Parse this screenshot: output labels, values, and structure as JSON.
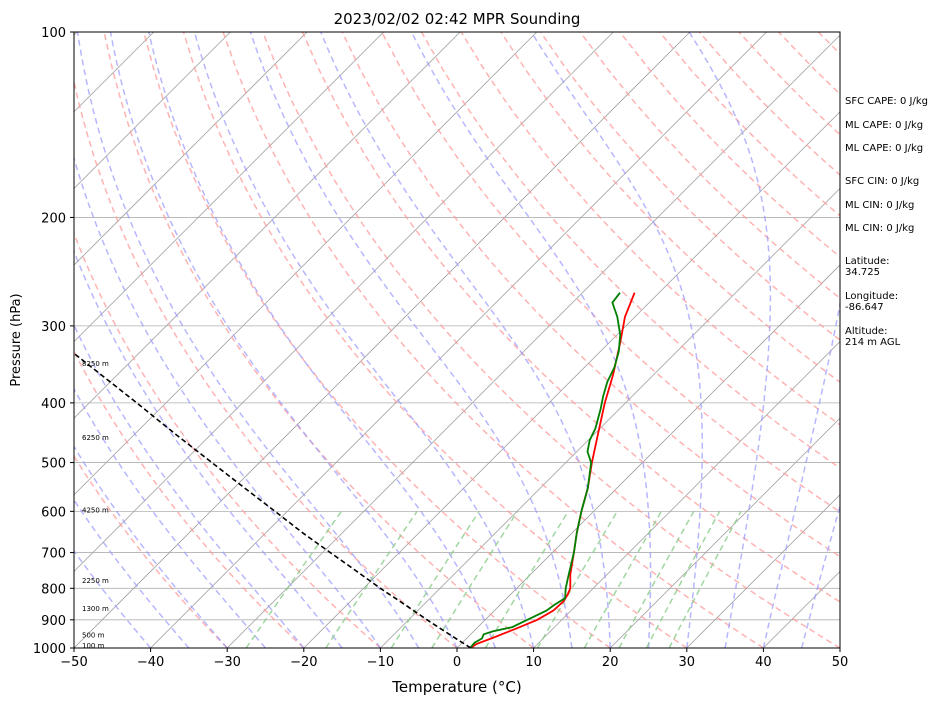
{
  "chart_data": {
    "type": "skew-t",
    "title": "2023/02/02 02:42 MPR Sounding",
    "xlabel": "Temperature (°C)",
    "ylabel": "Pressure (hPa)",
    "xlim": [
      -50,
      50
    ],
    "ylim": [
      1000,
      100
    ],
    "y_scale": "log",
    "grid": true,
    "x_ticks": [
      -50,
      -40,
      -30,
      -20,
      -10,
      0,
      10,
      20,
      30,
      40,
      50
    ],
    "x_tick_labels": [
      "−50",
      "−40",
      "−30",
      "−20",
      "−10",
      "0",
      "10",
      "20",
      "30",
      "40",
      "50"
    ],
    "y_ticks": [
      1000,
      900,
      800,
      700,
      600,
      500,
      400,
      300,
      200,
      100
    ],
    "y_tick_labels": [
      "1000",
      "900",
      "800",
      "700",
      "600",
      "500",
      "400",
      "300",
      "200",
      "100"
    ],
    "height_labels": [
      {
        "pressure": 992,
        "text": "100 m"
      },
      {
        "pressure": 955,
        "text": "500 m"
      },
      {
        "pressure": 865,
        "text": "1300 m"
      },
      {
        "pressure": 778,
        "text": "2250 m"
      },
      {
        "pressure": 598,
        "text": "4250 m"
      },
      {
        "pressure": 456,
        "text": "6250 m"
      },
      {
        "pressure": 346,
        "text": "8250 m"
      }
    ],
    "series": [
      {
        "role": "temperature",
        "color": "#ff0000",
        "points": [
          {
            "p": 1000,
            "t": 1.8
          },
          {
            "p": 985,
            "t": 2.0
          },
          {
            "p": 960,
            "t": 3.5
          },
          {
            "p": 930,
            "t": 5.2
          },
          {
            "p": 900,
            "t": 6.8
          },
          {
            "p": 870,
            "t": 7.7
          },
          {
            "p": 840,
            "t": 7.8
          },
          {
            "p": 820,
            "t": 7.5
          },
          {
            "p": 800,
            "t": 7.0
          },
          {
            "p": 760,
            "t": 5.2
          },
          {
            "p": 700,
            "t": 2.8
          },
          {
            "p": 650,
            "t": 0.6
          },
          {
            "p": 600,
            "t": -1.6
          },
          {
            "p": 550,
            "t": -3.8
          },
          {
            "p": 500,
            "t": -6.6
          },
          {
            "p": 450,
            "t": -9.5
          },
          {
            "p": 400,
            "t": -12.7
          },
          {
            "p": 360,
            "t": -15.3
          },
          {
            "p": 320,
            "t": -18.5
          },
          {
            "p": 290,
            "t": -21.3
          },
          {
            "p": 265,
            "t": -23.2
          }
        ]
      },
      {
        "role": "dewpoint",
        "color": "#008000",
        "points": [
          {
            "p": 1000,
            "t": 1.7
          },
          {
            "p": 980,
            "t": 1.6
          },
          {
            "p": 965,
            "t": 2.0
          },
          {
            "p": 950,
            "t": 1.7
          },
          {
            "p": 940,
            "t": 2.5
          },
          {
            "p": 925,
            "t": 4.5
          },
          {
            "p": 900,
            "t": 5.5
          },
          {
            "p": 870,
            "t": 6.8
          },
          {
            "p": 850,
            "t": 7.1
          },
          {
            "p": 830,
            "t": 7.6
          },
          {
            "p": 800,
            "t": 6.4
          },
          {
            "p": 760,
            "t": 5.0
          },
          {
            "p": 700,
            "t": 2.8
          },
          {
            "p": 650,
            "t": 0.6
          },
          {
            "p": 600,
            "t": -1.6
          },
          {
            "p": 550,
            "t": -3.8
          },
          {
            "p": 500,
            "t": -6.7
          },
          {
            "p": 480,
            "t": -8.6
          },
          {
            "p": 460,
            "t": -9.8
          },
          {
            "p": 440,
            "t": -10.6
          },
          {
            "p": 410,
            "t": -12.4
          },
          {
            "p": 390,
            "t": -13.8
          },
          {
            "p": 370,
            "t": -15.1
          },
          {
            "p": 350,
            "t": -16.1
          },
          {
            "p": 330,
            "t": -17.6
          },
          {
            "p": 310,
            "t": -19.6
          },
          {
            "p": 290,
            "t": -22.3
          },
          {
            "p": 275,
            "t": -24.8
          },
          {
            "p": 265,
            "t": -25.1
          }
        ]
      },
      {
        "role": "parcel",
        "color": "#000000",
        "dashed": true,
        "points": [
          {
            "p": 1000,
            "t": 1.8
          },
          {
            "p": 950,
            "t": -2.8
          },
          {
            "p": 900,
            "t": -7.6
          },
          {
            "p": 850,
            "t": -12.5
          },
          {
            "p": 800,
            "t": -17.8
          },
          {
            "p": 750,
            "t": -23.2
          },
          {
            "p": 700,
            "t": -29.0
          },
          {
            "p": 650,
            "t": -35.2
          },
          {
            "p": 600,
            "t": -41.6
          },
          {
            "p": 550,
            "t": -48.6
          },
          {
            "p": 500,
            "t": -56.2
          },
          {
            "p": 450,
            "t": -64.6
          },
          {
            "p": 400,
            "t": -73.8
          },
          {
            "p": 350,
            "t": -84.4
          },
          {
            "p": 300,
            "t": -96.6
          },
          {
            "p": 270,
            "t": -105.0
          }
        ]
      }
    ],
    "reference_lines": {
      "isotherm_color": "#a0a0a0",
      "dry_adiabat_color": "#ff9999",
      "moist_adiabat_color": "#9999ff",
      "mixing_ratio_color": "#88cc88"
    }
  },
  "info": {
    "sfc_cape": "SFC CAPE: 0 J/kg",
    "ml_cape_1": "ML CAPE: 0 J/kg",
    "ml_cape_2": "ML CAPE: 0 J/kg",
    "sfc_cin": "SFC CIN: 0 J/kg",
    "ml_cin_1": "ML CIN: 0 J/kg",
    "ml_cin_2": "ML CIN: 0 J/kg",
    "latitude_label": "Latitude:",
    "latitude_value": "34.725",
    "longitude_label": "Longitude:",
    "longitude_value": "-86.647",
    "altitude_label": "Altitude:",
    "altitude_value": "214 m AGL"
  }
}
